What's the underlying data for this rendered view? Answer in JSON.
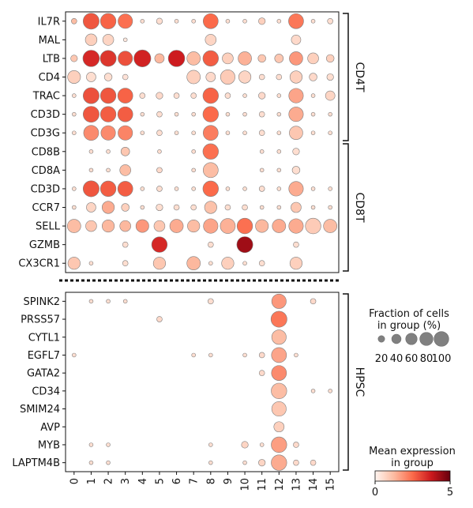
{
  "chart_data": {
    "type": "dotplot",
    "x_categories": [
      "0",
      "1",
      "2",
      "3",
      "4",
      "5",
      "6",
      "7",
      "8",
      "9",
      "10",
      "11",
      "12",
      "13",
      "14",
      "15"
    ],
    "panels": [
      {
        "genes": [
          "IL7R",
          "MAL",
          "LTB",
          "CD4",
          "TRAC",
          "CD3D",
          "CD3G",
          "CD8B",
          "CD8A",
          "CD3D",
          "CCR7",
          "SELL",
          "GZMB",
          "CX3CR1"
        ],
        "groups": [
          {
            "label": "CD4T",
            "from": 0,
            "to": 6
          },
          {
            "label": "CD8T",
            "from": 7,
            "to": 13
          }
        ],
        "fraction": [
          [
            10,
            85,
            80,
            70,
            5,
            12,
            5,
            5,
            75,
            5,
            5,
            15,
            5,
            75,
            5,
            10
          ],
          [
            0,
            45,
            40,
            5,
            0,
            0,
            0,
            0,
            40,
            0,
            0,
            0,
            0,
            30,
            0,
            0
          ],
          [
            15,
            90,
            85,
            70,
            95,
            30,
            90,
            60,
            80,
            40,
            60,
            20,
            25,
            60,
            40,
            20
          ],
          [
            55,
            30,
            20,
            10,
            0,
            0,
            0,
            60,
            30,
            70,
            50,
            10,
            10,
            50,
            20,
            15
          ],
          [
            5,
            85,
            80,
            75,
            10,
            15,
            10,
            10,
            80,
            10,
            5,
            15,
            5,
            70,
            5,
            30
          ],
          [
            5,
            85,
            80,
            75,
            5,
            10,
            5,
            5,
            80,
            5,
            5,
            10,
            5,
            70,
            5,
            5
          ],
          [
            5,
            75,
            70,
            70,
            5,
            10,
            5,
            5,
            75,
            5,
            5,
            10,
            5,
            60,
            5,
            5
          ],
          [
            0,
            5,
            5,
            25,
            0,
            5,
            0,
            5,
            80,
            0,
            0,
            5,
            5,
            15,
            0,
            0
          ],
          [
            0,
            5,
            5,
            40,
            0,
            10,
            0,
            5,
            75,
            0,
            0,
            5,
            5,
            20,
            0,
            0
          ],
          [
            5,
            85,
            80,
            75,
            5,
            10,
            5,
            5,
            80,
            5,
            5,
            10,
            5,
            70,
            5,
            5
          ],
          [
            5,
            30,
            50,
            20,
            5,
            15,
            10,
            10,
            50,
            10,
            10,
            5,
            5,
            35,
            5,
            5
          ],
          [
            60,
            40,
            50,
            40,
            55,
            40,
            60,
            50,
            70,
            75,
            80,
            55,
            60,
            70,
            80,
            60
          ],
          [
            0,
            0,
            0,
            10,
            0,
            80,
            0,
            0,
            10,
            0,
            85,
            0,
            0,
            10,
            0,
            0
          ],
          [
            50,
            5,
            0,
            10,
            0,
            50,
            0,
            60,
            5,
            50,
            5,
            10,
            0,
            50,
            0,
            0
          ]
        ],
        "expression": [
          [
            1.2,
            2.8,
            2.6,
            2.4,
            0.5,
            0.5,
            0.5,
            0.5,
            2.5,
            0.5,
            0.5,
            0.8,
            0.5,
            2.3,
            0.5,
            0.5
          ],
          [
            0,
            0.8,
            0.7,
            0.3,
            0,
            0,
            0,
            0,
            0.7,
            0,
            0,
            0,
            0,
            0.6,
            0,
            0
          ],
          [
            1.0,
            3.5,
            3.3,
            2.9,
            3.6,
            1.3,
            3.7,
            1.2,
            2.7,
            0.8,
            1.4,
            1.0,
            1.0,
            1.8,
            0.8,
            0.8
          ],
          [
            0.8,
            0.5,
            0.5,
            0.4,
            0,
            0,
            0,
            0.8,
            0.6,
            0.9,
            0.7,
            0.5,
            0.5,
            0.8,
            0.6,
            0.5
          ],
          [
            0.5,
            2.9,
            2.8,
            2.6,
            0.5,
            0.6,
            0.5,
            0.5,
            2.6,
            0.5,
            0.5,
            0.6,
            0.5,
            1.6,
            0.5,
            0.7
          ],
          [
            0.5,
            2.8,
            2.7,
            2.7,
            0.5,
            0.5,
            0.5,
            0.5,
            2.5,
            0.5,
            0.5,
            0.5,
            0.5,
            1.5,
            0.5,
            0.5
          ],
          [
            0.5,
            2.0,
            2.0,
            2.1,
            0.5,
            0.5,
            0.5,
            0.5,
            2.2,
            0.5,
            0.5,
            0.5,
            0.5,
            1.0,
            0.5,
            0.5
          ],
          [
            0,
            0.5,
            0.5,
            1.0,
            0,
            0.5,
            0,
            0.5,
            2.4,
            0,
            0,
            0.5,
            0.5,
            0.5,
            0,
            0
          ],
          [
            0,
            0.5,
            0.5,
            1.2,
            0,
            0.6,
            0,
            0.5,
            1.2,
            0,
            0,
            0.5,
            0.5,
            0.5,
            0,
            0
          ],
          [
            0.5,
            2.8,
            2.7,
            2.7,
            0.5,
            0.5,
            0.5,
            0.5,
            2.5,
            0.5,
            0.5,
            0.5,
            0.5,
            1.5,
            0.5,
            0.5
          ],
          [
            0.5,
            0.7,
            1.5,
            0.8,
            0.5,
            0.5,
            0.5,
            0.5,
            1.1,
            0.5,
            0.5,
            0.5,
            0.5,
            1.0,
            0.5,
            0.5
          ],
          [
            1.2,
            1.0,
            1.3,
            1.3,
            1.8,
            1.0,
            1.5,
            1.2,
            1.6,
            1.4,
            2.4,
            1.3,
            1.5,
            1.5,
            0.9,
            1.2
          ],
          [
            0,
            0,
            0,
            0.5,
            0,
            3.5,
            0,
            0,
            0.5,
            0,
            4.3,
            0,
            0,
            0.5,
            0,
            0
          ],
          [
            1.0,
            0.5,
            0,
            0.5,
            0,
            1.0,
            0,
            1.3,
            0.5,
            0.8,
            0.5,
            0.5,
            0,
            0.8,
            0,
            0
          ]
        ]
      },
      {
        "genes": [
          "SPINK2",
          "PRSS57",
          "CYTL1",
          "EGFL7",
          "GATA2",
          "CD34",
          "SMIM24",
          "AVP",
          "MYB",
          "LAPTM4B"
        ],
        "groups": [
          {
            "label": "HPSC",
            "from": 0,
            "to": 9
          }
        ],
        "fraction": [
          [
            0,
            5,
            5,
            5,
            0,
            0,
            0,
            0,
            10,
            0,
            0,
            0,
            70,
            0,
            10,
            0
          ],
          [
            0,
            0,
            0,
            0,
            0,
            10,
            0,
            0,
            0,
            0,
            0,
            0,
            85,
            0,
            0,
            0
          ],
          [
            0,
            0,
            0,
            0,
            0,
            0,
            0,
            0,
            0,
            0,
            0,
            0,
            70,
            0,
            0,
            0
          ],
          [
            5,
            0,
            0,
            0,
            0,
            0,
            0,
            5,
            5,
            0,
            5,
            10,
            75,
            5,
            0,
            0
          ],
          [
            0,
            0,
            0,
            0,
            0,
            0,
            0,
            0,
            0,
            0,
            0,
            10,
            75,
            0,
            0,
            0
          ],
          [
            0,
            0,
            0,
            0,
            0,
            0,
            0,
            0,
            0,
            0,
            0,
            0,
            80,
            0,
            5,
            5
          ],
          [
            0,
            0,
            0,
            0,
            0,
            0,
            0,
            0,
            0,
            0,
            0,
            0,
            70,
            0,
            0,
            0
          ],
          [
            0,
            0,
            0,
            0,
            0,
            0,
            0,
            0,
            0,
            0,
            0,
            0,
            35,
            0,
            0,
            0
          ],
          [
            0,
            5,
            5,
            0,
            0,
            0,
            0,
            0,
            5,
            0,
            15,
            5,
            80,
            10,
            0,
            0
          ],
          [
            0,
            5,
            5,
            0,
            0,
            0,
            0,
            0,
            5,
            0,
            5,
            15,
            80,
            10,
            10,
            0
          ]
        ],
        "expression": [
          [
            0,
            0.5,
            0.5,
            0.5,
            0,
            0,
            0,
            0,
            0.5,
            0,
            0,
            0,
            1.8,
            0,
            0.6,
            0
          ],
          [
            0,
            0,
            0,
            0,
            0,
            0.6,
            0,
            0,
            0,
            0,
            0,
            0,
            2.3,
            0,
            0,
            0
          ],
          [
            0,
            0,
            0,
            0,
            0,
            0,
            0,
            0,
            0,
            0,
            0,
            0,
            1.2,
            0,
            0,
            0
          ],
          [
            0.5,
            0,
            0,
            0,
            0,
            0,
            0,
            0.5,
            0.5,
            0,
            0.5,
            0.6,
            1.6,
            0.5,
            0,
            0
          ],
          [
            0,
            0,
            0,
            0,
            0,
            0,
            0,
            0,
            0,
            0,
            0,
            0.6,
            2.0,
            0,
            0,
            0
          ],
          [
            0,
            0,
            0,
            0,
            0,
            0,
            0,
            0,
            0,
            0,
            0,
            0,
            1.2,
            0,
            0.5,
            0.5
          ],
          [
            0,
            0,
            0,
            0,
            0,
            0,
            0,
            0,
            0,
            0,
            0,
            0,
            1.0,
            0,
            0,
            0
          ],
          [
            0,
            0,
            0,
            0,
            0,
            0,
            0,
            0,
            0,
            0,
            0,
            0,
            0.8,
            0,
            0,
            0
          ],
          [
            0,
            0.5,
            0.5,
            0,
            0,
            0,
            0,
            0,
            0.5,
            0,
            0.7,
            0.5,
            1.7,
            0.6,
            0,
            0
          ],
          [
            0,
            0.5,
            0.5,
            0,
            0,
            0,
            0,
            0,
            0.5,
            0,
            0.5,
            0.7,
            1.5,
            0.6,
            0.6,
            0
          ]
        ]
      }
    ],
    "size_legend": {
      "title_line1": "Fraction of cells",
      "title_line2": "in group (%)",
      "values": [
        20,
        40,
        60,
        80,
        100
      ],
      "labels": [
        "20",
        "40",
        "60",
        "80",
        "100"
      ]
    },
    "color_legend": {
      "title_line1": "Mean expression",
      "title_line2": "in group",
      "min": 0,
      "max": 5,
      "tick_labels": [
        "0",
        "5"
      ],
      "colors": [
        "#fff5f0",
        "#fcbba1",
        "#fb6a4a",
        "#cb181d",
        "#67000d"
      ]
    }
  }
}
